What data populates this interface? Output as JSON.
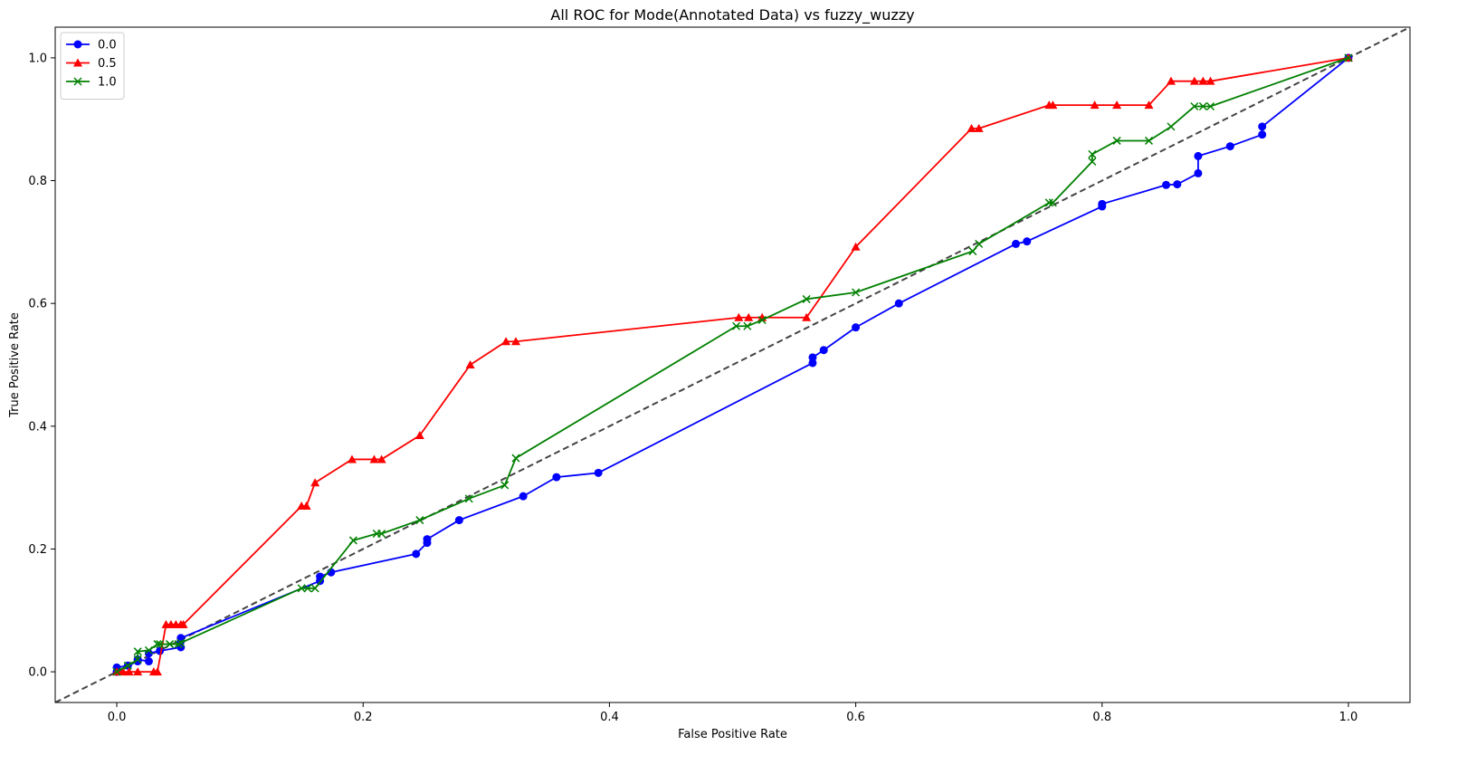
{
  "chart_data": {
    "type": "line",
    "title": "All ROC for Mode(Annotated Data) vs fuzzy_wuzzy",
    "xlabel": "False Positive Rate",
    "ylabel": "True Positive Rate",
    "xlim": [
      -0.05,
      1.05
    ],
    "ylim": [
      -0.05,
      1.05
    ],
    "xticks": [
      0.0,
      0.2,
      0.4,
      0.6,
      0.8,
      1.0
    ],
    "yticks": [
      0.0,
      0.2,
      0.4,
      0.6,
      0.8,
      1.0
    ],
    "xtick_labels": [
      "0.0",
      "0.2",
      "0.4",
      "0.6",
      "0.8",
      "1.0"
    ],
    "ytick_labels": [
      "0.0",
      "0.2",
      "0.4",
      "0.6",
      "0.8",
      "1.0"
    ],
    "grid": false,
    "legend_position": "top-left",
    "diagonal": {
      "x": [
        -0.05,
        1.05
      ],
      "y": [
        -0.05,
        1.05
      ],
      "color": "#444444",
      "style": "dashed"
    },
    "series": [
      {
        "name": "0.0",
        "color": "#0000ff",
        "marker": "circle",
        "x": [
          0.0,
          0.0,
          0.009,
          0.017,
          0.017,
          0.026,
          0.026,
          0.035,
          0.052,
          0.052,
          0.052,
          0.165,
          0.165,
          0.174,
          0.243,
          0.252,
          0.252,
          0.278,
          0.33,
          0.357,
          0.391,
          0.565,
          0.565,
          0.574,
          0.6,
          0.635,
          0.73,
          0.739,
          0.8,
          0.8,
          0.852,
          0.861,
          0.878,
          0.878,
          0.904,
          0.93,
          0.93,
          1.0
        ],
        "y": [
          0.0,
          0.007,
          0.01,
          0.017,
          0.02,
          0.017,
          0.03,
          0.034,
          0.04,
          0.05,
          0.055,
          0.148,
          0.155,
          0.162,
          0.192,
          0.21,
          0.216,
          0.247,
          0.286,
          0.317,
          0.324,
          0.503,
          0.512,
          0.524,
          0.561,
          0.6,
          0.697,
          0.701,
          0.758,
          0.762,
          0.793,
          0.794,
          0.812,
          0.84,
          0.856,
          0.875,
          0.888,
          1.0
        ]
      },
      {
        "name": "0.5",
        "color": "#ff0000",
        "marker": "triangle",
        "x": [
          0.0,
          0.005,
          0.01,
          0.017,
          0.03,
          0.033,
          0.04,
          0.044,
          0.048,
          0.052,
          0.054,
          0.15,
          0.154,
          0.161,
          0.191,
          0.209,
          0.215,
          0.246,
          0.287,
          0.316,
          0.324,
          0.505,
          0.513,
          0.524,
          0.56,
          0.6,
          0.694,
          0.7,
          0.757,
          0.76,
          0.794,
          0.812,
          0.838,
          0.856,
          0.875,
          0.882,
          0.888,
          1.0
        ],
        "y": [
          0.0,
          0.0,
          0.0,
          0.0,
          0.0,
          0.0,
          0.077,
          0.077,
          0.077,
          0.077,
          0.077,
          0.27,
          0.27,
          0.308,
          0.346,
          0.346,
          0.346,
          0.385,
          0.5,
          0.538,
          0.538,
          0.577,
          0.577,
          0.577,
          0.577,
          0.692,
          0.885,
          0.885,
          0.923,
          0.923,
          0.923,
          0.923,
          0.923,
          0.962,
          0.962,
          0.962,
          0.962,
          1.0
        ]
      },
      {
        "name": "1.0",
        "color": "#008000",
        "marker": "x",
        "x": [
          0.0,
          0.009,
          0.017,
          0.017,
          0.026,
          0.033,
          0.035,
          0.043,
          0.05,
          0.052,
          0.15,
          0.155,
          0.161,
          0.192,
          0.211,
          0.215,
          0.246,
          0.286,
          0.315,
          0.324,
          0.503,
          0.512,
          0.524,
          0.56,
          0.6,
          0.695,
          0.7,
          0.757,
          0.76,
          0.792,
          0.792,
          0.812,
          0.838,
          0.856,
          0.875,
          0.882,
          0.888,
          1.0
        ],
        "y": [
          0.0,
          0.01,
          0.02,
          0.033,
          0.035,
          0.045,
          0.045,
          0.045,
          0.045,
          0.047,
          0.136,
          0.136,
          0.136,
          0.214,
          0.225,
          0.225,
          0.247,
          0.282,
          0.304,
          0.348,
          0.563,
          0.563,
          0.573,
          0.607,
          0.618,
          0.685,
          0.697,
          0.764,
          0.764,
          0.831,
          0.843,
          0.865,
          0.865,
          0.888,
          0.921,
          0.921,
          0.921,
          1.0
        ]
      }
    ]
  }
}
